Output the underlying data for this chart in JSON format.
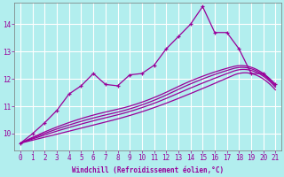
{
  "xlabel": "Windchill (Refroidissement éolien,°C)",
  "background_color": "#b2eeee",
  "grid_color": "#ffffff",
  "line_color": "#990099",
  "xlim": [
    -0.5,
    21.5
  ],
  "ylim": [
    9.4,
    14.8
  ],
  "xticks": [
    0,
    1,
    2,
    3,
    4,
    5,
    6,
    7,
    8,
    9,
    10,
    11,
    12,
    13,
    14,
    15,
    16,
    17,
    18,
    19,
    20,
    21
  ],
  "yticks": [
    10,
    11,
    12,
    13,
    14
  ],
  "main_x": [
    0,
    1,
    2,
    3,
    4,
    5,
    6,
    7,
    8,
    9,
    10,
    11,
    12,
    13,
    14,
    15,
    16,
    17,
    18,
    19,
    20,
    21
  ],
  "main_y": [
    9.65,
    10.0,
    10.4,
    10.85,
    11.45,
    11.75,
    12.2,
    11.8,
    11.75,
    12.15,
    12.2,
    12.5,
    13.1,
    13.55,
    14.0,
    14.65,
    13.7,
    13.7,
    13.1,
    12.2,
    12.2,
    11.8
  ],
  "smooth1_x": [
    0,
    5,
    10,
    15,
    20,
    21
  ],
  "smooth1_y": [
    9.65,
    10.55,
    11.15,
    12.1,
    12.2,
    11.8
  ],
  "smooth2_x": [
    0,
    5,
    10,
    15,
    20,
    21
  ],
  "smooth2_y": [
    9.65,
    10.45,
    11.05,
    12.0,
    12.15,
    11.75
  ],
  "smooth3_x": [
    0,
    5,
    10,
    15,
    20,
    21
  ],
  "smooth3_y": [
    9.65,
    10.35,
    10.95,
    11.85,
    12.1,
    11.7
  ],
  "smooth4_x": [
    0,
    5,
    10,
    15,
    20,
    21
  ],
  "smooth4_y": [
    9.65,
    10.2,
    10.8,
    11.65,
    12.0,
    11.6
  ]
}
